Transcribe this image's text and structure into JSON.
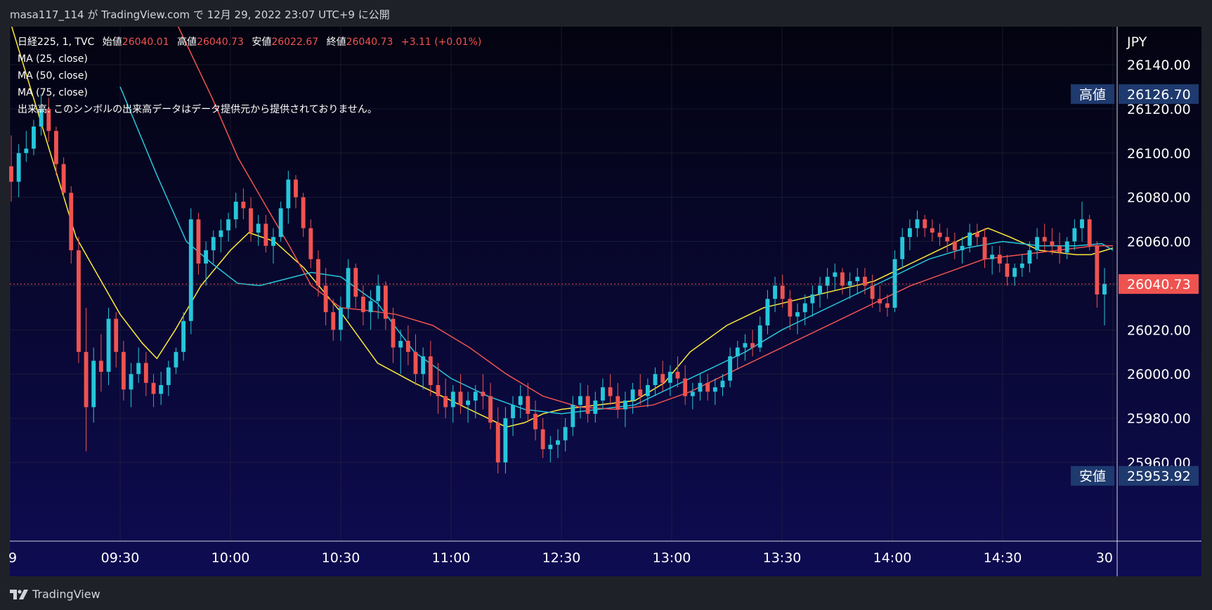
{
  "header": {
    "publish_text": "masa117_114 が TradingView.com で 12月 29, 2022 23:07 UTC+9 に公開"
  },
  "legend": {
    "symbol": "日経225, 1, TVC",
    "open_label": "始値",
    "open": "26040.01",
    "high_label": "高値",
    "high": "26040.73",
    "low_label": "安値",
    "low": "26022.67",
    "close_label": "終値",
    "close": "26040.73",
    "change": "+3.11 (+0.01%)",
    "ma1": "MA (25, close)",
    "ma2": "MA (50, close)",
    "ma3": "MA (75, close)",
    "volume_note": "出来高: このシンボルの出来高データはデータ提供元から提供されておりません。"
  },
  "footer": {
    "brand": "TradingView"
  },
  "colors": {
    "bg_top": "#030310",
    "bg_bottom": "#0e0c52",
    "up": "#26c6da",
    "down": "#ef5350",
    "ma25": "#ffeb3b",
    "ma50": "#26c6da",
    "ma75": "#ef5350",
    "label_bg": "#1e3a6e",
    "last_price_bg": "#ef5350"
  },
  "chart_data": {
    "type": "candlestick",
    "currency": "JPY",
    "ylim": [
      25950,
      26150
    ],
    "yticks": [
      "26140.00",
      "26120.00",
      "26100.00",
      "26080.00",
      "26060.00",
      "26040.00",
      "26020.00",
      "26000.00",
      "25980.00",
      "25960.00"
    ],
    "xticks": [
      {
        "label": "9",
        "t": 0
      },
      {
        "label": "09:30",
        "t": 30
      },
      {
        "label": "10:00",
        "t": 60
      },
      {
        "label": "10:30",
        "t": 90
      },
      {
        "label": "11:00",
        "t": 120
      },
      {
        "label": "12:30",
        "t": 150
      },
      {
        "label": "13:00",
        "t": 180
      },
      {
        "label": "13:30",
        "t": 210
      },
      {
        "label": "14:00",
        "t": 240
      },
      {
        "label": "14:30",
        "t": 270
      },
      {
        "label": "30",
        "t": 300
      }
    ],
    "markers": {
      "high_label": "高値",
      "high_value": "26126.70",
      "high": 26126.7,
      "low_label": "安値",
      "low_value": "25953.92",
      "low": 25953.92,
      "last_value": "26040.73",
      "last": 26040.73
    },
    "ma_series": [
      {
        "name": "MA (25, close)",
        "points": [
          [
            0,
            26160
          ],
          [
            18,
            26062
          ],
          [
            30,
            26027
          ],
          [
            36,
            26014
          ],
          [
            40,
            26007
          ],
          [
            45,
            26020
          ],
          [
            52,
            26040
          ],
          [
            60,
            26056
          ],
          [
            65,
            26064
          ],
          [
            72,
            26060
          ],
          [
            80,
            26048
          ],
          [
            85,
            26038
          ],
          [
            90,
            26028
          ],
          [
            100,
            26005
          ],
          [
            110,
            25996
          ],
          [
            120,
            25988
          ],
          [
            130,
            25980
          ],
          [
            135,
            25976
          ],
          [
            140,
            25978
          ],
          [
            145,
            25982
          ],
          [
            150,
            25984
          ],
          [
            160,
            25986
          ],
          [
            170,
            25988
          ],
          [
            178,
            25996
          ],
          [
            185,
            26010
          ],
          [
            195,
            26022
          ],
          [
            205,
            26030
          ],
          [
            215,
            26034
          ],
          [
            225,
            26038
          ],
          [
            235,
            26042
          ],
          [
            245,
            26050
          ],
          [
            255,
            26058
          ],
          [
            260,
            26062
          ],
          [
            266,
            26066
          ],
          [
            272,
            26062
          ],
          [
            280,
            26056
          ],
          [
            290,
            26054
          ],
          [
            294,
            26054
          ],
          [
            300,
            26057
          ]
        ]
      },
      {
        "name": "MA (50, close)",
        "points": [
          [
            30,
            26130
          ],
          [
            40,
            26090
          ],
          [
            48,
            26060
          ],
          [
            55,
            26050
          ],
          [
            62,
            26041
          ],
          [
            68,
            26040
          ],
          [
            75,
            26043
          ],
          [
            82,
            26046
          ],
          [
            90,
            26044
          ],
          [
            100,
            26032
          ],
          [
            110,
            26010
          ],
          [
            120,
            25998
          ],
          [
            130,
            25990
          ],
          [
            140,
            25984
          ],
          [
            150,
            25982
          ],
          [
            160,
            25984
          ],
          [
            170,
            25986
          ],
          [
            180,
            25994
          ],
          [
            190,
            26002
          ],
          [
            200,
            26010
          ],
          [
            210,
            26020
          ],
          [
            220,
            26028
          ],
          [
            230,
            26036
          ],
          [
            240,
            26044
          ],
          [
            250,
            26052
          ],
          [
            260,
            26057
          ],
          [
            270,
            26060
          ],
          [
            280,
            26058
          ],
          [
            290,
            26058
          ],
          [
            297,
            26059
          ],
          [
            300,
            26056
          ]
        ]
      },
      {
        "name": "MA (75, close)",
        "points": [
          [
            45,
            26160
          ],
          [
            55,
            26125
          ],
          [
            62,
            26098
          ],
          [
            70,
            26075
          ],
          [
            76,
            26058
          ],
          [
            82,
            26040
          ],
          [
            90,
            26030
          ],
          [
            96,
            26029
          ],
          [
            105,
            26027
          ],
          [
            115,
            26022
          ],
          [
            125,
            26012
          ],
          [
            135,
            26000
          ],
          [
            145,
            25990
          ],
          [
            155,
            25985
          ],
          [
            165,
            25984
          ],
          [
            175,
            25986
          ],
          [
            185,
            25992
          ],
          [
            195,
            26000
          ],
          [
            205,
            26008
          ],
          [
            215,
            26016
          ],
          [
            225,
            26024
          ],
          [
            235,
            26032
          ],
          [
            245,
            26040
          ],
          [
            255,
            26046
          ],
          [
            265,
            26052
          ],
          [
            275,
            26054
          ],
          [
            285,
            26056
          ],
          [
            295,
            26058
          ],
          [
            300,
            26058
          ]
        ]
      }
    ],
    "candles": [
      [
        26094,
        26108,
        26078,
        26087
      ],
      [
        26087,
        26104,
        26080,
        26100
      ],
      [
        26100,
        26110,
        26096,
        26102
      ],
      [
        26102,
        26115,
        26099,
        26112
      ],
      [
        26112,
        26126.7,
        26108,
        26120
      ],
      [
        26120,
        26125,
        26105,
        26110
      ],
      [
        26110,
        26112,
        26090,
        26095
      ],
      [
        26095,
        26098,
        26080,
        26082
      ],
      [
        26082,
        26085,
        26050,
        26056
      ],
      [
        26056,
        26062,
        26005,
        26010
      ],
      [
        26010,
        26030,
        25965,
        25985
      ],
      [
        25985,
        26012,
        25978,
        26006
      ],
      [
        26006,
        26018,
        25992,
        26001
      ],
      [
        26001,
        26030,
        25995,
        26025
      ],
      [
        26025,
        26028,
        26003,
        26010
      ],
      [
        26010,
        26015,
        25988,
        25993
      ],
      [
        25993,
        26005,
        25985,
        26000
      ],
      [
        26000,
        26012,
        25996,
        26005
      ],
      [
        26005,
        26010,
        25990,
        25996
      ],
      [
        25996,
        26000,
        25985,
        25991
      ],
      [
        25991,
        26001,
        25986,
        25995
      ],
      [
        25995,
        26006,
        25990,
        26003
      ],
      [
        26003,
        26012,
        26000,
        26010
      ],
      [
        26010,
        26028,
        26006,
        26024
      ],
      [
        26024,
        26075,
        26018,
        26070
      ],
      [
        26070,
        26073,
        26045,
        26050
      ],
      [
        26050,
        26060,
        26040,
        26056
      ],
      [
        26056,
        26065,
        26050,
        26062
      ],
      [
        26062,
        26070,
        26055,
        26065
      ],
      [
        26065,
        26073,
        26060,
        26070
      ],
      [
        26070,
        26082,
        26066,
        26078
      ],
      [
        26078,
        26084,
        26070,
        26075
      ],
      [
        26075,
        26080,
        26060,
        26064
      ],
      [
        26064,
        26072,
        26058,
        26068
      ],
      [
        26068,
        26072,
        26055,
        26058
      ],
      [
        26058,
        26066,
        26050,
        26062
      ],
      [
        26062,
        26078,
        26060,
        26075
      ],
      [
        26075,
        26092,
        26068,
        26088
      ],
      [
        26088,
        26090,
        26075,
        26080
      ],
      [
        26080,
        26082,
        26062,
        26066
      ],
      [
        26066,
        26070,
        26048,
        26052
      ],
      [
        26052,
        26056,
        26035,
        26040
      ],
      [
        26040,
        26048,
        26022,
        26028
      ],
      [
        26028,
        26034,
        26015,
        26020
      ],
      [
        26020,
        26035,
        26015,
        26030
      ],
      [
        26030,
        26052,
        26025,
        26048
      ],
      [
        26048,
        26050,
        26030,
        26035
      ],
      [
        26035,
        26040,
        26022,
        26028
      ],
      [
        26028,
        26038,
        26020,
        26033
      ],
      [
        26033,
        26045,
        26025,
        26040
      ],
      [
        26040,
        26042,
        26020,
        26025
      ],
      [
        26025,
        26030,
        26005,
        26012
      ],
      [
        26012,
        26020,
        26000,
        26015
      ],
      [
        26015,
        26022,
        26004,
        26010
      ],
      [
        26010,
        26018,
        25995,
        26000
      ],
      [
        26000,
        26012,
        25993,
        26008
      ],
      [
        26008,
        26015,
        25990,
        25995
      ],
      [
        25995,
        26005,
        25982,
        25990
      ],
      [
        25990,
        25998,
        25980,
        25985
      ],
      [
        25985,
        25995,
        25978,
        25992
      ],
      [
        25992,
        26000,
        25982,
        25986
      ],
      [
        25986,
        25992,
        25978,
        25988
      ],
      [
        25988,
        25995,
        25980,
        25992
      ],
      [
        25992,
        26000,
        25984,
        25990
      ],
      [
        25990,
        25996,
        25975,
        25978
      ],
      [
        25978,
        25985,
        25955,
        25960
      ],
      [
        25960,
        25985,
        25955,
        25980
      ],
      [
        25980,
        25990,
        25972,
        25986
      ],
      [
        25986,
        25995,
        25980,
        25990
      ],
      [
        25990,
        25996,
        25978,
        25982
      ],
      [
        25982,
        25988,
        25970,
        25975
      ],
      [
        25975,
        25980,
        25962,
        25966
      ],
      [
        25966,
        25972,
        25960,
        25968
      ],
      [
        25968,
        25975,
        25962,
        25970
      ],
      [
        25970,
        25980,
        25965,
        25976
      ],
      [
        25976,
        25990,
        25972,
        25986
      ],
      [
        25986,
        25996,
        25980,
        25990
      ],
      [
        25990,
        25995,
        25978,
        25982
      ],
      [
        25982,
        25992,
        25978,
        25988
      ],
      [
        25988,
        25998,
        25984,
        25994
      ],
      [
        25994,
        26000,
        25986,
        25990
      ],
      [
        25990,
        25996,
        25980,
        25984
      ],
      [
        25984,
        25992,
        25976,
        25988
      ],
      [
        25988,
        25996,
        25982,
        25993
      ],
      [
        25993,
        26000,
        25986,
        25990
      ],
      [
        25990,
        25998,
        25985,
        25995
      ],
      [
        25995,
        26003,
        25990,
        26000
      ],
      [
        26000,
        26006,
        25992,
        25996
      ],
      [
        25996,
        26004,
        25990,
        26001
      ],
      [
        26001,
        26008,
        25994,
        25998
      ],
      [
        25998,
        26004,
        25986,
        25990
      ],
      [
        25990,
        25996,
        25984,
        25992
      ],
      [
        25992,
        26000,
        25988,
        25996
      ],
      [
        25996,
        26000,
        25988,
        25992
      ],
      [
        25992,
        25998,
        25986,
        25994
      ],
      [
        25994,
        26000,
        25990,
        25997
      ],
      [
        25997,
        26012,
        25994,
        26008
      ],
      [
        26008,
        26015,
        26002,
        26012
      ],
      [
        26012,
        26018,
        26006,
        26014
      ],
      [
        26014,
        26020,
        26008,
        26012
      ],
      [
        26012,
        26026,
        26010,
        26022
      ],
      [
        26022,
        26038,
        26018,
        26034
      ],
      [
        26034,
        26044,
        26028,
        26040
      ],
      [
        26040,
        26045,
        26030,
        26034
      ],
      [
        26034,
        26038,
        26020,
        26026
      ],
      [
        26026,
        26032,
        26018,
        26028
      ],
      [
        26028,
        26036,
        26022,
        26032
      ],
      [
        26032,
        26040,
        26026,
        26036
      ],
      [
        26036,
        26044,
        26030,
        26040
      ],
      [
        26040,
        26048,
        26034,
        26044
      ],
      [
        26044,
        26050,
        26038,
        26046
      ],
      [
        26046,
        26048,
        26036,
        26040
      ],
      [
        26040,
        26046,
        26034,
        26042
      ],
      [
        26042,
        26048,
        26036,
        26044
      ],
      [
        26044,
        26048,
        26036,
        26040
      ],
      [
        26040,
        26045,
        26030,
        26034
      ],
      [
        26034,
        26040,
        26028,
        26032
      ],
      [
        26032,
        26036,
        26026,
        26030
      ],
      [
        26030,
        26056,
        26028,
        26052
      ],
      [
        26052,
        26066,
        26048,
        26062
      ],
      [
        26062,
        26070,
        26056,
        26066
      ],
      [
        26066,
        26074,
        26062,
        26070
      ],
      [
        26070,
        26072,
        26062,
        26066
      ],
      [
        26066,
        26070,
        26060,
        26064
      ],
      [
        26064,
        26068,
        26058,
        26062
      ],
      [
        26062,
        26066,
        26055,
        26060
      ],
      [
        26060,
        26064,
        26052,
        26056
      ],
      [
        26056,
        26062,
        26050,
        26058
      ],
      [
        26058,
        26068,
        26055,
        26064
      ],
      [
        26064,
        26068,
        26058,
        26062
      ],
      [
        26062,
        26066,
        26048,
        26052
      ],
      [
        26052,
        26058,
        26045,
        26054
      ],
      [
        26054,
        26058,
        26046,
        26050
      ],
      [
        26050,
        26054,
        26040,
        26044
      ],
      [
        26044,
        26050,
        26040,
        26048
      ],
      [
        26048,
        26054,
        26044,
        26050
      ],
      [
        26050,
        26060,
        26046,
        26056
      ],
      [
        26056,
        26066,
        26052,
        26062
      ],
      [
        26062,
        26068,
        26056,
        26060
      ],
      [
        26060,
        26066,
        26054,
        26058
      ],
      [
        26058,
        26064,
        26050,
        26055
      ],
      [
        26055,
        26062,
        26052,
        26060
      ],
      [
        26060,
        26070,
        26056,
        26066
      ],
      [
        26066,
        26078,
        26060,
        26070
      ],
      [
        26070,
        26072,
        26056,
        26058
      ],
      [
        26058,
        26060,
        26030,
        26036
      ],
      [
        26036,
        26048,
        26022,
        26040.73
      ]
    ]
  }
}
